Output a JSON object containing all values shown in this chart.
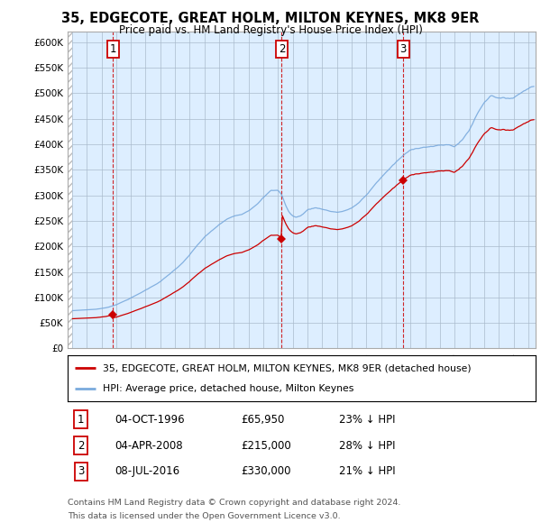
{
  "title": "35, EDGECOTE, GREAT HOLM, MILTON KEYNES, MK8 9ER",
  "subtitle": "Price paid vs. HM Land Registry's House Price Index (HPI)",
  "sales": [
    {
      "date": 1996.79,
      "price": 65950,
      "label": "1",
      "date_str": "04-OCT-1996",
      "pct": "23%"
    },
    {
      "date": 2008.25,
      "price": 215000,
      "label": "2",
      "date_str": "04-APR-2008",
      "pct": "28%"
    },
    {
      "date": 2016.51,
      "price": 330000,
      "label": "3",
      "date_str": "08-JUL-2016",
      "pct": "21%"
    }
  ],
  "legend_property": "35, EDGECOTE, GREAT HOLM, MILTON KEYNES, MK8 9ER (detached house)",
  "legend_hpi": "HPI: Average price, detached house, Milton Keynes",
  "footer1": "Contains HM Land Registry data © Crown copyright and database right 2024.",
  "footer2": "This data is licensed under the Open Government Licence v3.0.",
  "table_rows": [
    {
      "num": "1",
      "date": "04-OCT-1996",
      "price": "£65,950",
      "pct": "23% ↓ HPI"
    },
    {
      "num": "2",
      "date": "04-APR-2008",
      "price": "£215,000",
      "pct": "28% ↓ HPI"
    },
    {
      "num": "3",
      "date": "08-JUL-2016",
      "price": "£330,000",
      "pct": "21% ↓ HPI"
    }
  ],
  "hpi_color": "#7aaadd",
  "sale_color": "#cc0000",
  "bg_color": "#ffffff",
  "plot_bg": "#ddeeff",
  "grid_color": "#aabbcc",
  "ylim": [
    0,
    620000
  ],
  "xlim": [
    1994.0,
    2025.5
  ],
  "yticks": [
    0,
    50000,
    100000,
    150000,
    200000,
    250000,
    300000,
    350000,
    400000,
    450000,
    500000,
    550000,
    600000
  ],
  "ytick_labels": [
    "£0",
    "£50K",
    "£100K",
    "£150K",
    "£200K",
    "£250K",
    "£300K",
    "£350K",
    "£400K",
    "£450K",
    "£500K",
    "£550K",
    "£600K"
  ],
  "xticks": [
    1994,
    1995,
    1996,
    1997,
    1998,
    1999,
    2000,
    2001,
    2002,
    2003,
    2004,
    2005,
    2006,
    2007,
    2008,
    2009,
    2010,
    2011,
    2012,
    2013,
    2014,
    2015,
    2016,
    2017,
    2018,
    2019,
    2020,
    2021,
    2022,
    2023,
    2024,
    2025
  ]
}
